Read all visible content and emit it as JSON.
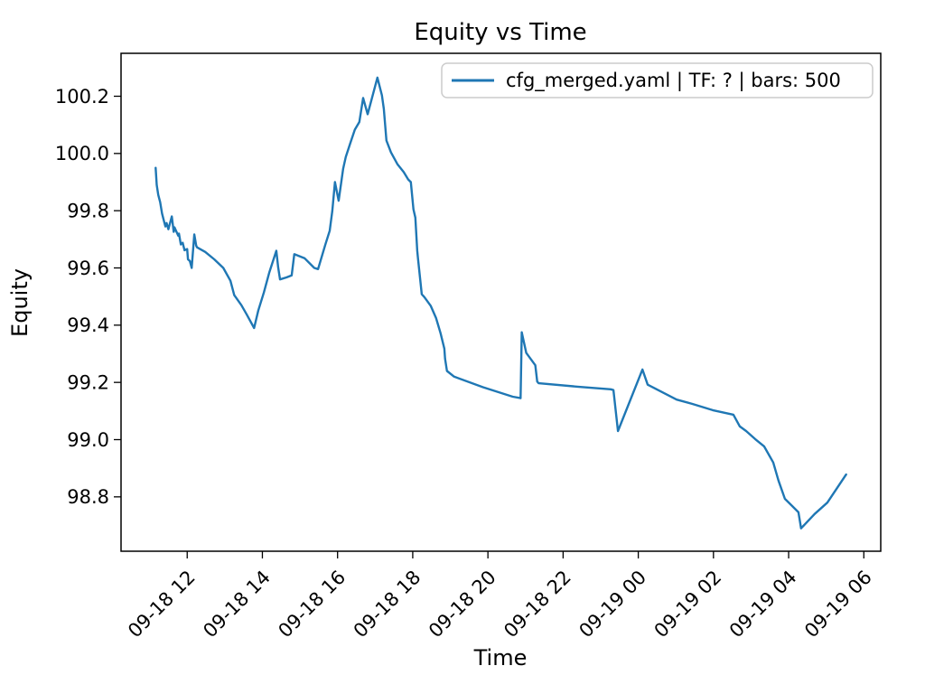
{
  "title": "Equity vs Time",
  "axes": {
    "xlabel": "Time",
    "ylabel": "Equity"
  },
  "legend": {
    "label": "cfg_merged.yaml | TF: ? | bars: 500",
    "position": "upper right"
  },
  "colors": {
    "line": "#1f77b4",
    "spine": "#000000",
    "legend_border": "#cccccc",
    "background": "#ffffff",
    "text": "#000000"
  },
  "chart_data": {
    "type": "line",
    "title": "Equity vs Time",
    "xlabel": "Time",
    "ylabel": "Equity",
    "grid": false,
    "legend_position": "upper right",
    "x_unit": "hours since 09-18 12:00",
    "xlim": [
      -1.76,
      18.45
    ],
    "ylim": [
      98.61,
      100.35
    ],
    "xticks": [
      {
        "t": 0,
        "label": "09-18 12"
      },
      {
        "t": 2,
        "label": "09-18 14"
      },
      {
        "t": 4,
        "label": "09-18 16"
      },
      {
        "t": 6,
        "label": "09-18 18"
      },
      {
        "t": 8,
        "label": "09-18 20"
      },
      {
        "t": 10,
        "label": "09-18 22"
      },
      {
        "t": 12,
        "label": "09-19 00"
      },
      {
        "t": 14,
        "label": "09-19 02"
      },
      {
        "t": 16,
        "label": "09-19 04"
      },
      {
        "t": 18,
        "label": "09-19 06"
      }
    ],
    "yticks": [
      98.8,
      99.0,
      99.2,
      99.4,
      99.6,
      99.8,
      100.0,
      100.2
    ],
    "series": [
      {
        "name": "cfg_merged.yaml | TF: ? | bars: 500",
        "color": "#1f77b4",
        "points": [
          [
            -0.84,
            99.95
          ],
          [
            -0.81,
            99.89
          ],
          [
            -0.77,
            99.855
          ],
          [
            -0.72,
            99.83
          ],
          [
            -0.67,
            99.79
          ],
          [
            -0.62,
            99.765
          ],
          [
            -0.58,
            99.745
          ],
          [
            -0.55,
            99.757
          ],
          [
            -0.5,
            99.735
          ],
          [
            -0.41,
            99.78
          ],
          [
            -0.36,
            99.726
          ],
          [
            -0.34,
            99.742
          ],
          [
            -0.24,
            99.713
          ],
          [
            -0.22,
            99.72
          ],
          [
            -0.17,
            99.682
          ],
          [
            -0.12,
            99.688
          ],
          [
            -0.07,
            99.662
          ],
          [
            0.0,
            99.666
          ],
          [
            0.02,
            99.63
          ],
          [
            0.07,
            99.624
          ],
          [
            0.12,
            99.6
          ],
          [
            0.19,
            99.717
          ],
          [
            0.24,
            99.678
          ],
          [
            0.26,
            99.672
          ],
          [
            0.48,
            99.656
          ],
          [
            0.72,
            99.63
          ],
          [
            0.96,
            99.6
          ],
          [
            1.15,
            99.555
          ],
          [
            1.25,
            99.505
          ],
          [
            1.44,
            99.47
          ],
          [
            1.58,
            99.438
          ],
          [
            1.78,
            99.39
          ],
          [
            1.89,
            99.451
          ],
          [
            2.04,
            99.514
          ],
          [
            2.18,
            99.583
          ],
          [
            2.37,
            99.66
          ],
          [
            2.42,
            99.603
          ],
          [
            2.47,
            99.56
          ],
          [
            2.64,
            99.567
          ],
          [
            2.78,
            99.574
          ],
          [
            2.85,
            99.648
          ],
          [
            3.12,
            99.634
          ],
          [
            3.38,
            99.6
          ],
          [
            3.48,
            99.596
          ],
          [
            3.67,
            99.68
          ],
          [
            3.79,
            99.73
          ],
          [
            3.86,
            99.8
          ],
          [
            3.93,
            99.9
          ],
          [
            4.03,
            99.835
          ],
          [
            4.15,
            99.947
          ],
          [
            4.22,
            99.988
          ],
          [
            4.34,
            100.036
          ],
          [
            4.46,
            100.083
          ],
          [
            4.58,
            100.11
          ],
          [
            4.68,
            100.194
          ],
          [
            4.8,
            100.137
          ],
          [
            5.06,
            100.265
          ],
          [
            5.18,
            100.203
          ],
          [
            5.23,
            100.156
          ],
          [
            5.3,
            100.045
          ],
          [
            5.42,
            100.004
          ],
          [
            5.59,
            99.963
          ],
          [
            5.76,
            99.935
          ],
          [
            5.88,
            99.909
          ],
          [
            5.95,
            99.9
          ],
          [
            6.02,
            99.805
          ],
          [
            6.07,
            99.776
          ],
          [
            6.12,
            99.66
          ],
          [
            6.14,
            99.634
          ],
          [
            6.24,
            99.508
          ],
          [
            6.31,
            99.498
          ],
          [
            6.48,
            99.467
          ],
          [
            6.62,
            99.425
          ],
          [
            6.74,
            99.372
          ],
          [
            6.84,
            99.318
          ],
          [
            6.86,
            99.283
          ],
          [
            6.91,
            99.24
          ],
          [
            7.1,
            99.22
          ],
          [
            7.87,
            99.183
          ],
          [
            8.66,
            99.15
          ],
          [
            8.87,
            99.145
          ],
          [
            8.9,
            99.375
          ],
          [
            9.02,
            99.303
          ],
          [
            9.26,
            99.26
          ],
          [
            9.31,
            99.203
          ],
          [
            9.35,
            99.197
          ],
          [
            10.38,
            99.185
          ],
          [
            11.27,
            99.176
          ],
          [
            11.34,
            99.173
          ],
          [
            11.46,
            99.03
          ],
          [
            12.11,
            99.245
          ],
          [
            12.25,
            99.192
          ],
          [
            13.02,
            99.14
          ],
          [
            13.43,
            99.125
          ],
          [
            13.98,
            99.103
          ],
          [
            14.53,
            99.087
          ],
          [
            14.7,
            99.046
          ],
          [
            14.87,
            99.03
          ],
          [
            15.11,
            99.002
          ],
          [
            15.35,
            98.976
          ],
          [
            15.59,
            98.92
          ],
          [
            15.73,
            98.857
          ],
          [
            15.9,
            98.793
          ],
          [
            16.07,
            98.771
          ],
          [
            16.26,
            98.746
          ],
          [
            16.31,
            98.708
          ],
          [
            16.33,
            98.69
          ],
          [
            16.69,
            98.74
          ],
          [
            17.03,
            98.78
          ],
          [
            17.53,
            98.878
          ]
        ]
      }
    ]
  }
}
